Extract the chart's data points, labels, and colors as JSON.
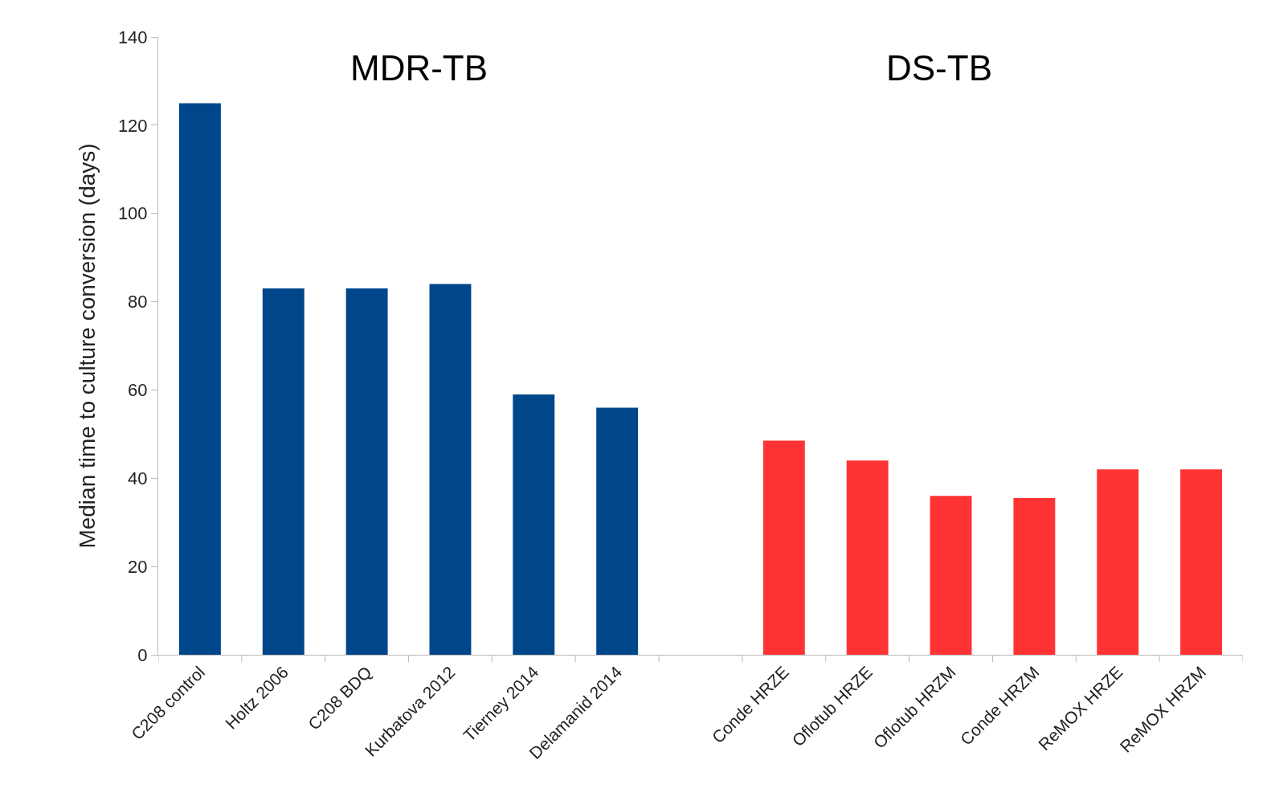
{
  "chart_data": {
    "type": "bar",
    "ylabel": "Median time to culture conversion (days)",
    "categories": [
      "C208 control",
      "Holtz 2006",
      "C208 BDQ",
      "Kurbatova 2012",
      "Tierney 2014",
      "Delamanid 2014",
      null,
      "Conde HRZE",
      "Oflotub HRZE",
      "Oflotub HRZM",
      "Conde HRZM",
      "ReMOX HRZE",
      "ReMOX HRZM"
    ],
    "values": [
      125,
      83,
      83,
      84,
      59,
      56,
      null,
      48.5,
      44,
      36,
      35.5,
      42,
      42
    ],
    "colors": [
      "#00468b",
      "#00468b",
      "#00468b",
      "#00468b",
      "#00468b",
      "#00468b",
      null,
      "#ff3333",
      "#ff3333",
      "#ff3333",
      "#ff3333",
      "#ff3333",
      "#ff3333"
    ],
    "ylim": [
      0,
      140
    ],
    "yticks": [
      0,
      20,
      40,
      60,
      80,
      100,
      120,
      140
    ],
    "grid": false,
    "annotations": [
      "MDR-TB",
      "DS-TB"
    ]
  }
}
